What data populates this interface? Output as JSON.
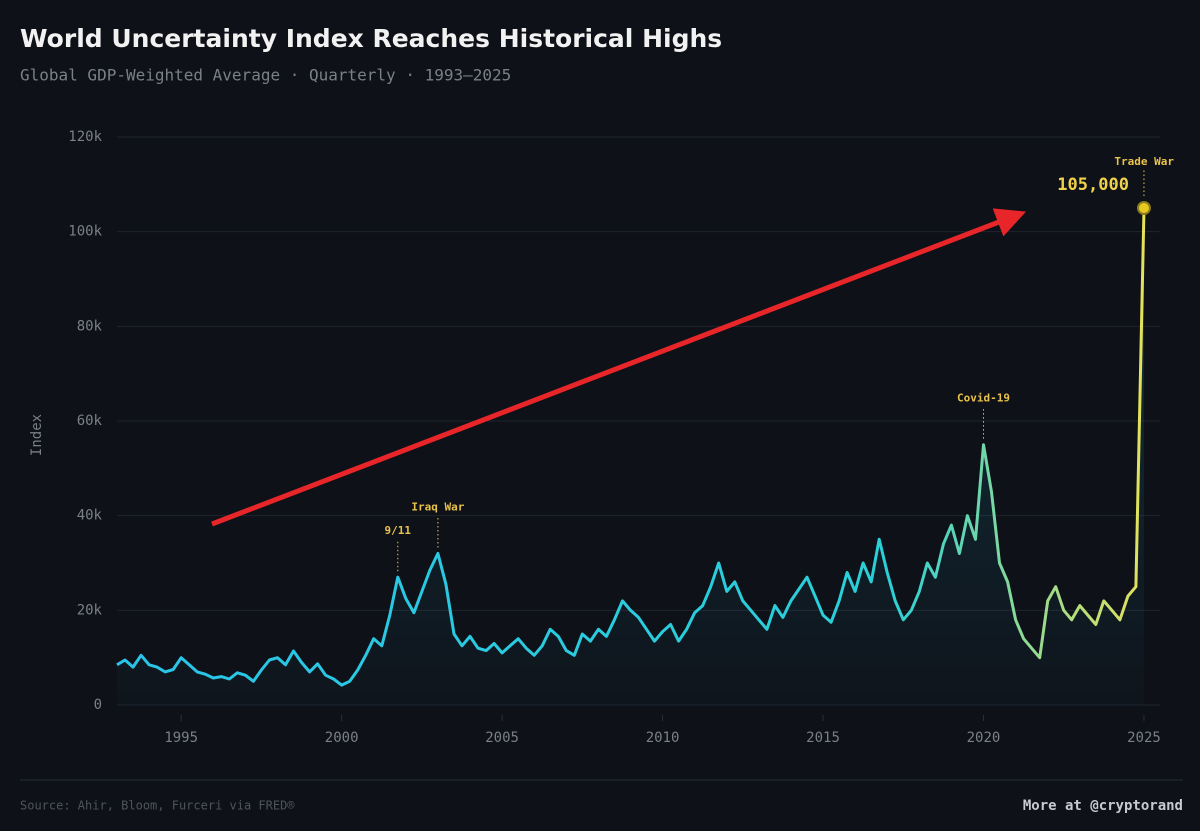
{
  "chart_data": {
    "type": "line",
    "title": "World Uncertainty Index Reaches Historical Highs",
    "subtitle": "Global GDP-Weighted Average · Quarterly · 1993–2025",
    "y_label": "Index",
    "source": "Source: Ahir, Bloom, Furceri via FRED®",
    "footer": "More at @cryptorand",
    "x": [
      1993,
      1993.25,
      1993.5,
      1993.75,
      1994,
      1994.25,
      1994.5,
      1994.75,
      1995,
      1995.25,
      1995.5,
      1995.75,
      1996,
      1996.25,
      1996.5,
      1996.75,
      1997,
      1997.25,
      1997.5,
      1997.75,
      1998,
      1998.25,
      1998.5,
      1998.75,
      1999,
      1999.25,
      1999.5,
      1999.75,
      2000,
      2000.25,
      2000.5,
      2000.75,
      2001,
      2001.25,
      2001.5,
      2001.75,
      2002,
      2002.25,
      2002.5,
      2002.75,
      2003,
      2003.25,
      2003.5,
      2003.75,
      2004,
      2004.25,
      2004.5,
      2004.75,
      2005,
      2005.25,
      2005.5,
      2005.75,
      2006,
      2006.25,
      2006.5,
      2006.75,
      2007,
      2007.25,
      2007.5,
      2007.75,
      2008,
      2008.25,
      2008.5,
      2008.75,
      2009,
      2009.25,
      2009.5,
      2009.75,
      2010,
      2010.25,
      2010.5,
      2010.75,
      2011,
      2011.25,
      2011.5,
      2011.75,
      2012,
      2012.25,
      2012.5,
      2012.75,
      2013,
      2013.25,
      2013.5,
      2013.75,
      2014,
      2014.25,
      2014.5,
      2014.75,
      2015,
      2015.25,
      2015.5,
      2015.75,
      2016,
      2016.25,
      2016.5,
      2016.75,
      2017,
      2017.25,
      2017.5,
      2017.75,
      2018,
      2018.25,
      2018.5,
      2018.75,
      2019,
      2019.25,
      2019.5,
      2019.75,
      2020,
      2020.25,
      2020.5,
      2020.75,
      2021,
      2021.25,
      2021.5,
      2021.75,
      2022,
      2022.25,
      2022.5,
      2022.75,
      2023,
      2023.25,
      2023.5,
      2023.75,
      2024,
      2024.25,
      2024.5,
      2024.75,
      2025
    ],
    "series": [
      {
        "name": "World Uncertainty Index",
        "color": "#2ac4e8",
        "end_color": "#e4e25a",
        "values": [
          8500,
          9500,
          8000,
          10500,
          8500,
          8000,
          7000,
          7500,
          10000,
          8500,
          7000,
          6500,
          5700,
          6000,
          5500,
          6800,
          6300,
          5000,
          7400,
          9500,
          10000,
          8500,
          11400,
          9000,
          7000,
          8700,
          6300,
          5500,
          4200,
          5000,
          7400,
          10500,
          14000,
          12500,
          19000,
          27000,
          22500,
          19500,
          24000,
          28500,
          32000,
          25500,
          15000,
          12500,
          14500,
          12000,
          11500,
          13000,
          11000,
          12500,
          14000,
          12000,
          10500,
          12500,
          16000,
          14500,
          11500,
          10500,
          15000,
          13500,
          16000,
          14500,
          18000,
          22000,
          20000,
          18500,
          16000,
          13500,
          15500,
          17000,
          13500,
          16000,
          19500,
          21000,
          25000,
          30000,
          24000,
          26000,
          22000,
          20000,
          18000,
          16000,
          21000,
          18500,
          22000,
          24500,
          27000,
          23000,
          19000,
          17500,
          22000,
          28000,
          24000,
          30000,
          26000,
          35000,
          28000,
          22000,
          18000,
          20000,
          24000,
          30000,
          27000,
          34000,
          38000,
          32000,
          40000,
          35000,
          55000,
          45000,
          30000,
          26000,
          18000,
          14000,
          12000,
          10000,
          22000,
          25000,
          20000,
          18000,
          21000,
          19000,
          17000,
          22000,
          20000,
          18000,
          23000,
          25000,
          105000
        ]
      }
    ],
    "xlim": [
      1993,
      2025.5
    ],
    "xticks": [
      1995,
      2000,
      2005,
      2010,
      2015,
      2020,
      2025
    ],
    "ylim": [
      0,
      120000
    ],
    "yticks": [
      0,
      {
        "value": 20000,
        "label": "20k"
      },
      {
        "value": 40000,
        "label": "40k"
      },
      {
        "value": 60000,
        "label": "60k"
      },
      {
        "value": 80000,
        "label": "80k"
      },
      {
        "value": 100000,
        "label": "100k"
      },
      {
        "value": 120000,
        "label": "120k"
      }
    ],
    "grid": true,
    "annotations": [
      {
        "text": "9/11",
        "x": 2001.75,
        "y": 27000
      },
      {
        "text": "Iraq War",
        "x": 2003,
        "y": 32000
      },
      {
        "text": "Covid-19",
        "x": 2020,
        "y": 55000
      },
      {
        "text": "Trade War",
        "x": 2025,
        "y": 105000
      }
    ],
    "peak_label": "105,000"
  }
}
